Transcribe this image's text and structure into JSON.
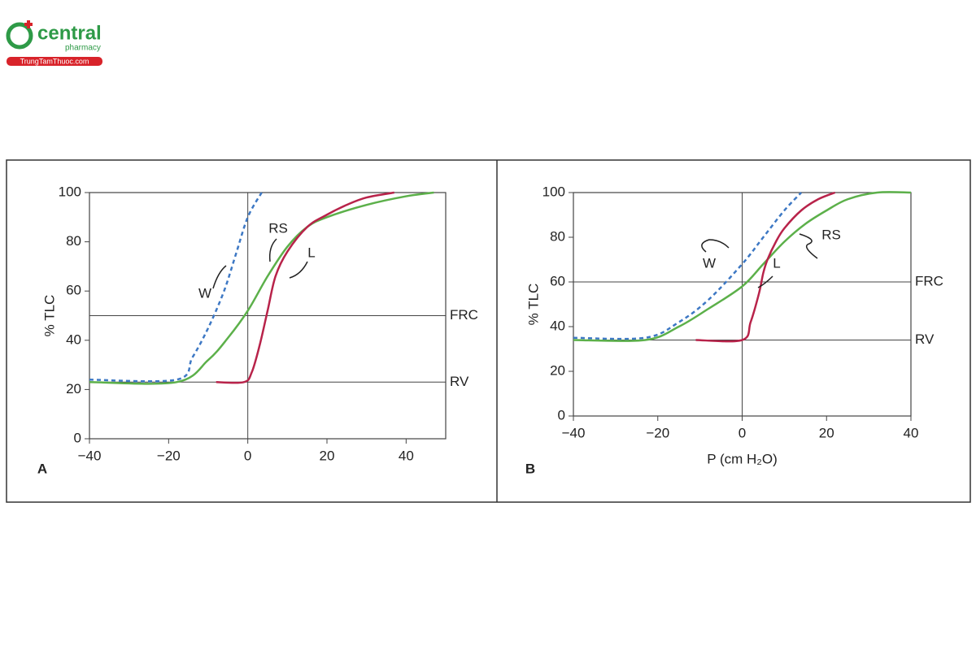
{
  "logo": {
    "name": "central",
    "sub": "pharmacy",
    "site": "TrungTamThuoc.com"
  },
  "chart_data": [
    {
      "type": "line",
      "panel": "A",
      "ylabel": "% TLC",
      "xlim": [
        -40,
        50
      ],
      "xticks": [
        {
          "value": -40,
          "label": "−40"
        },
        {
          "value": -20,
          "label": "−20"
        },
        0,
        20,
        40
      ],
      "ylim": [
        0,
        100
      ],
      "yticks": [
        0,
        20,
        40,
        60,
        80,
        100
      ],
      "vline": 0,
      "hlines": [
        {
          "value": 50,
          "label": "FRC"
        },
        {
          "value": 23,
          "label": "RV"
        }
      ],
      "series": [
        {
          "name": "W",
          "color": "#3d78c4",
          "dashed": true,
          "x": [
            -40,
            -18,
            -14,
            -10,
            -6,
            -3,
            0,
            3.5
          ],
          "values": [
            24,
            24,
            33,
            45,
            60,
            75,
            90,
            100
          ]
        },
        {
          "name": "RS",
          "color": "#5cb04a",
          "dashed": false,
          "x": [
            -40,
            -18,
            -10,
            -5,
            0,
            5,
            10,
            15,
            20,
            30,
            40,
            47
          ],
          "values": [
            23,
            23,
            32,
            41,
            52,
            66,
            78,
            86,
            90,
            95,
            98.5,
            100
          ]
        },
        {
          "name": "L",
          "color": "#b8234a",
          "dashed": false,
          "x": [
            -8,
            -1,
            1,
            3,
            5,
            7,
            10,
            15,
            20,
            25,
            30,
            37
          ],
          "values": [
            23,
            23,
            27,
            38,
            52,
            66,
            76,
            86,
            91,
            95,
            98,
            100
          ]
        }
      ]
    },
    {
      "type": "line",
      "panel": "B",
      "ylabel": "% TLC",
      "xlabel": "P (cm H₂O)",
      "xlim": [
        -40,
        40
      ],
      "xticks": [
        {
          "value": -40,
          "label": "−40"
        },
        {
          "value": -20,
          "label": "−20"
        },
        0,
        20,
        40
      ],
      "ylim": [
        0,
        100
      ],
      "yticks": [
        0,
        20,
        40,
        60,
        80,
        100
      ],
      "vline": 0,
      "hlines": [
        {
          "value": 60,
          "label": "FRC"
        },
        {
          "value": 34,
          "label": "RV"
        }
      ],
      "series": [
        {
          "name": "W",
          "color": "#3d78c4",
          "dashed": true,
          "x": [
            -40,
            -23,
            -15,
            -8,
            0,
            5,
            10,
            14
          ],
          "values": [
            35,
            35,
            42,
            52,
            68,
            80,
            92,
            100
          ]
        },
        {
          "name": "RS",
          "color": "#5cb04a",
          "dashed": false,
          "x": [
            -40,
            -23,
            -15,
            -8,
            0,
            5,
            10,
            15,
            20,
            25,
            32,
            40
          ],
          "values": [
            34,
            34,
            40,
            48,
            58,
            68,
            78,
            86,
            92,
            97,
            100,
            100
          ]
        },
        {
          "name": "L",
          "color": "#b8234a",
          "dashed": false,
          "x": [
            -11,
            0,
            2,
            4,
            5,
            6,
            8,
            10,
            14,
            18,
            22
          ],
          "values": [
            34,
            34,
            42,
            55,
            64,
            70,
            78,
            84,
            92,
            97,
            100
          ]
        }
      ]
    }
  ]
}
